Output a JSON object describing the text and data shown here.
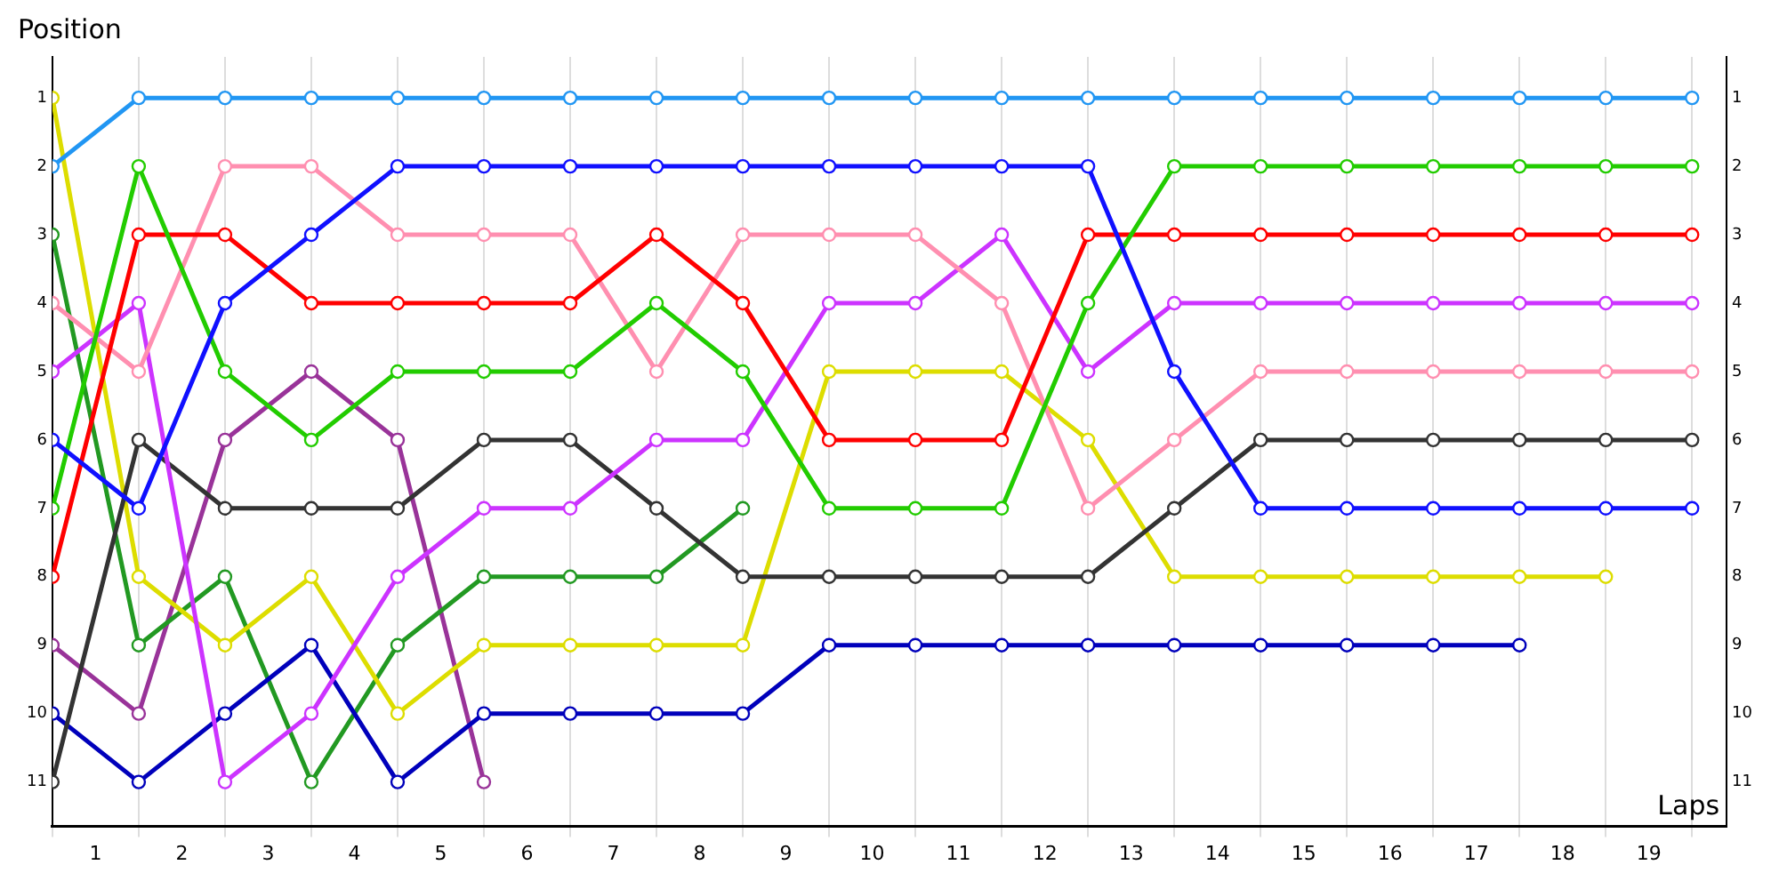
{
  "chart_data": {
    "type": "line",
    "xlabel": "Laps",
    "ylabel": "Position",
    "x": [
      0,
      1,
      2,
      3,
      4,
      5,
      6,
      7,
      8,
      9,
      10,
      11,
      12,
      13,
      14,
      15,
      16,
      17,
      18,
      19
    ],
    "xlim": [
      0,
      19.4
    ],
    "xticks": [
      {
        "value": 0,
        "label": null
      },
      {
        "value": 0.5,
        "label": "1"
      },
      {
        "value": 1,
        "label": null
      },
      {
        "value": 1.5,
        "label": "2"
      },
      {
        "value": 2,
        "label": null
      },
      {
        "value": 2.5,
        "label": "3"
      },
      {
        "value": 3,
        "label": null
      },
      {
        "value": 3.5,
        "label": "4"
      },
      {
        "value": 4,
        "label": null
      },
      {
        "value": 4.5,
        "label": "5"
      },
      {
        "value": 5,
        "label": null
      },
      {
        "value": 5.5,
        "label": "6"
      },
      {
        "value": 6,
        "label": null
      },
      {
        "value": 6.5,
        "label": "7"
      },
      {
        "value": 7,
        "label": null
      },
      {
        "value": 7.5,
        "label": "8"
      },
      {
        "value": 8,
        "label": null
      },
      {
        "value": 8.5,
        "label": "9"
      },
      {
        "value": 9,
        "label": null
      },
      {
        "value": 9.5,
        "label": "10"
      },
      {
        "value": 10,
        "label": null
      },
      {
        "value": 10.5,
        "label": "11"
      },
      {
        "value": 11,
        "label": null
      },
      {
        "value": 11.5,
        "label": "12"
      },
      {
        "value": 12,
        "label": null
      },
      {
        "value": 12.5,
        "label": "13"
      },
      {
        "value": 13,
        "label": null
      },
      {
        "value": 13.5,
        "label": "14"
      },
      {
        "value": 14,
        "label": null
      },
      {
        "value": 14.5,
        "label": "15"
      },
      {
        "value": 15,
        "label": null
      },
      {
        "value": 15.5,
        "label": "16"
      },
      {
        "value": 16,
        "label": null
      },
      {
        "value": 16.5,
        "label": "17"
      },
      {
        "value": 17,
        "label": null
      },
      {
        "value": 17.5,
        "label": "18"
      },
      {
        "value": 18,
        "label": null
      },
      {
        "value": 18.5,
        "label": "19"
      },
      {
        "value": 19,
        "label": null
      }
    ],
    "ylim": [
      11.65,
      0.4
    ],
    "yticks": [
      1,
      2,
      3,
      4,
      5,
      6,
      7,
      8,
      9,
      10,
      11
    ],
    "y2lim": [
      11.65,
      0.4
    ],
    "y2ticks": [
      1,
      2,
      3,
      4,
      5,
      6,
      7,
      8,
      9,
      10,
      11
    ],
    "grid": "x",
    "legend": false,
    "marker": "circle",
    "line_style": "solid",
    "series": [
      {
        "color": "#2196f3",
        "values": [
          2,
          1,
          1,
          1,
          1,
          1,
          1,
          1,
          1,
          1,
          1,
          1,
          1,
          1,
          1,
          1,
          1,
          1,
          1,
          1
        ]
      },
      {
        "color": "#1010ff",
        "values": [
          6,
          7,
          4,
          3,
          2,
          2,
          2,
          2,
          2,
          2,
          2,
          2,
          2,
          5,
          7,
          7,
          7,
          7,
          7,
          7
        ]
      },
      {
        "color": "#22cc00",
        "values": [
          7,
          2,
          5,
          6,
          5,
          5,
          5,
          4,
          5,
          7,
          7,
          7,
          4,
          2,
          2,
          2,
          2,
          2,
          2,
          2
        ]
      },
      {
        "color": "#ff0000",
        "values": [
          8,
          3,
          3,
          4,
          4,
          4,
          4,
          3,
          4,
          6,
          6,
          6,
          3,
          3,
          3,
          3,
          3,
          3,
          3,
          3
        ]
      },
      {
        "color": "#ff8fb0",
        "values": [
          4,
          5,
          2,
          2,
          3,
          3,
          3,
          5,
          3,
          3,
          3,
          4,
          7,
          6,
          5,
          5,
          5,
          5,
          5,
          5
        ]
      },
      {
        "color": "#cc33ff",
        "values": [
          5,
          4,
          11,
          10,
          8,
          7,
          7,
          6,
          6,
          4,
          4,
          3,
          5,
          4,
          4,
          4,
          4,
          4,
          4,
          4
        ]
      },
      {
        "color": "#333333",
        "values": [
          11,
          6,
          7,
          7,
          7,
          6,
          6,
          7,
          8,
          8,
          8,
          8,
          8,
          7,
          6,
          6,
          6,
          6,
          6,
          6
        ]
      },
      {
        "color": "#dddd00",
        "values": [
          1,
          8,
          9,
          8,
          10,
          9,
          9,
          9,
          9,
          5,
          5,
          5,
          6,
          8,
          8,
          8,
          8,
          8,
          8,
          null
        ]
      },
      {
        "color": "#0000bb",
        "values": [
          10,
          11,
          10,
          9,
          11,
          10,
          10,
          10,
          10,
          9,
          9,
          9,
          9,
          9,
          9,
          9,
          9,
          9,
          null,
          null
        ]
      },
      {
        "color": "#229922",
        "values": [
          3,
          9,
          8,
          11,
          9,
          8,
          8,
          8,
          7,
          null,
          null,
          null,
          null,
          null,
          null,
          null,
          null,
          null,
          null,
          null
        ]
      },
      {
        "color": "#993399",
        "values": [
          9,
          10,
          6,
          5,
          6,
          11,
          null,
          null,
          null,
          null,
          null,
          null,
          null,
          null,
          null,
          null,
          null,
          null,
          null,
          null
        ]
      }
    ]
  }
}
